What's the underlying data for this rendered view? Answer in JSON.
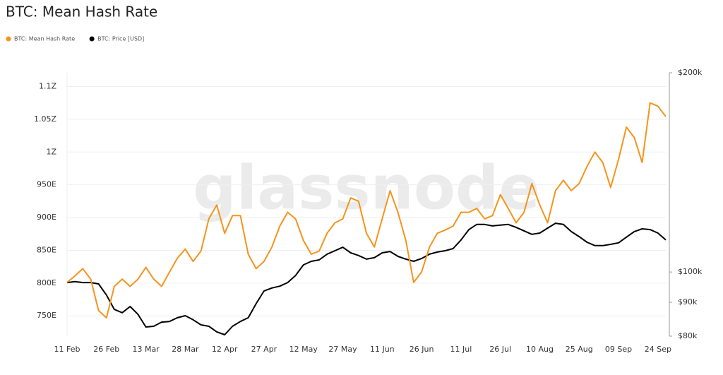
{
  "chart_data": {
    "type": "line",
    "title": "BTC: Mean Hash Rate",
    "watermark": "glassnode",
    "categories": [
      "11 Feb",
      null,
      null,
      null,
      null,
      "26 Feb",
      null,
      null,
      null,
      null,
      "13 Mar",
      null,
      null,
      null,
      null,
      "28 Mar",
      null,
      null,
      null,
      null,
      "12 Apr",
      null,
      null,
      null,
      null,
      "27 Apr",
      null,
      null,
      null,
      null,
      "12 May",
      null,
      null,
      null,
      null,
      "27 May",
      null,
      null,
      null,
      null,
      "11 Jun",
      null,
      null,
      null,
      null,
      "26 Jun",
      null,
      null,
      null,
      null,
      "11 Jul",
      null,
      null,
      null,
      null,
      "26 Jul",
      null,
      null,
      null,
      null,
      "10 Aug",
      null,
      null,
      null,
      null,
      "25 Aug",
      null,
      null,
      null,
      null,
      "09 Sep",
      null,
      null,
      null,
      null,
      "24 Sep",
      null
    ],
    "series": [
      {
        "name": "BTC: Mean Hash Rate",
        "color": "#f7931a",
        "axis": "y",
        "values": [
          801,
          811,
          822,
          806,
          758,
          747,
          795,
          806,
          795,
          806,
          824,
          806,
          795,
          817,
          838,
          852,
          833,
          849,
          898,
          919,
          876,
          903,
          903,
          844,
          822,
          833,
          855,
          887,
          908,
          898,
          865,
          844,
          849,
          876,
          892,
          898,
          930,
          925,
          876,
          855,
          898,
          941,
          908,
          865,
          801,
          817,
          855,
          876,
          881,
          887,
          908,
          908,
          914,
          898,
          903,
          935,
          914,
          892,
          908,
          952,
          919,
          892,
          941,
          957,
          941,
          952,
          978,
          1000,
          984,
          946,
          989,
          1038,
          1022,
          984,
          1075,
          1070,
          1054
        ]
      },
      {
        "name": "BTC: Price [USD]",
        "color": "#000000",
        "axis": "y2",
        "values": [
          96400,
          96700,
          96400,
          96400,
          95960,
          92300,
          87800,
          86800,
          88700,
          86300,
          82600,
          82800,
          84000,
          84200,
          85300,
          85900,
          84700,
          83200,
          82800,
          81200,
          80400,
          82800,
          84200,
          85300,
          89600,
          93600,
          94600,
          95200,
          96400,
          98800,
          102500,
          103800,
          104300,
          106400,
          107700,
          109000,
          106900,
          105900,
          104600,
          105100,
          106900,
          107400,
          105600,
          104600,
          103800,
          104800,
          106400,
          107200,
          107700,
          108500,
          111800,
          115900,
          118000,
          118000,
          117400,
          117700,
          118000,
          116800,
          115400,
          114000,
          114500,
          116500,
          118500,
          118000,
          115100,
          113100,
          110900,
          109600,
          109600,
          110100,
          110700,
          112900,
          115100,
          116200,
          115900,
          114500,
          111800
        ]
      }
    ],
    "ylim": [
      719,
      1121
    ],
    "yticks": [
      {
        "value": 750,
        "label": "750E"
      },
      {
        "value": 800,
        "label": "800E"
      },
      {
        "value": 850,
        "label": "850E"
      },
      {
        "value": 900,
        "label": "900E"
      },
      {
        "value": 950,
        "label": "950E"
      },
      {
        "value": 1000,
        "label": "1Z"
      },
      {
        "value": 1050,
        "label": "1.05Z"
      },
      {
        "value": 1100,
        "label": "1.1Z"
      }
    ],
    "y2lim": [
      80000,
      200000
    ],
    "y2log": true,
    "y2ticks": [
      {
        "value": 80000,
        "label": "$80k"
      },
      {
        "value": 90000,
        "label": "$90k"
      },
      {
        "value": 100000,
        "label": "$100k"
      },
      {
        "value": 200000,
        "label": "$200k"
      }
    ],
    "grid": true
  }
}
